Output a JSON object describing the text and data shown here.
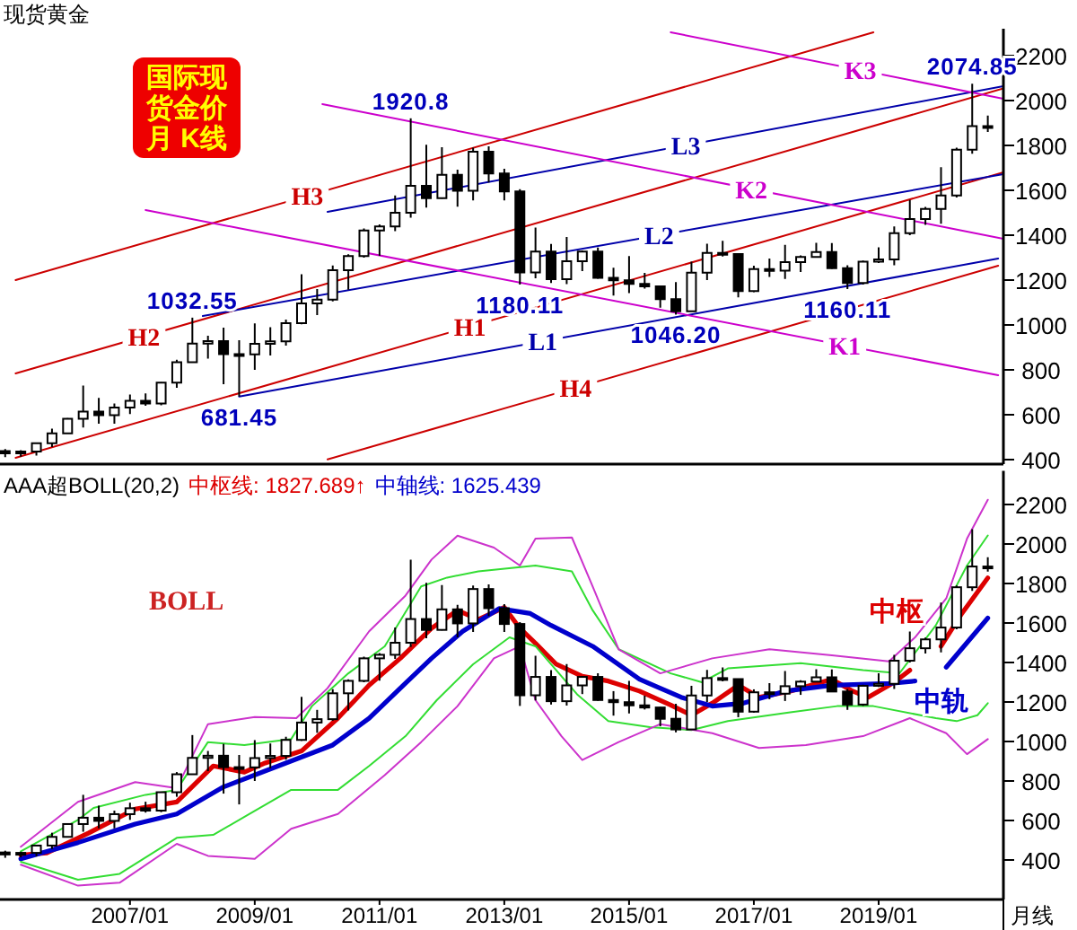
{
  "chart_data": [
    {
      "type": "candlestick",
      "title": "现货黄金",
      "xlim": [
        "2004-12",
        "2021-01"
      ],
      "ylim": [
        380,
        2320
      ],
      "yticks": [
        400,
        600,
        800,
        1000,
        1200,
        1400,
        1600,
        1800,
        2000,
        2200
      ],
      "tick_labels": "y",
      "x": [
        "2005-01",
        "2005-04",
        "2005-07",
        "2005-10",
        "2006-01",
        "2006-04",
        "2006-07",
        "2006-10",
        "2007-01",
        "2007-04",
        "2007-07",
        "2007-10",
        "2008-01",
        "2008-04",
        "2008-07",
        "2008-10",
        "2009-01",
        "2009-04",
        "2009-07",
        "2009-10",
        "2010-01",
        "2010-04",
        "2010-07",
        "2010-10",
        "2011-01",
        "2011-04",
        "2011-07",
        "2011-10",
        "2012-01",
        "2012-04",
        "2012-07",
        "2012-10",
        "2013-01",
        "2013-04",
        "2013-07",
        "2013-10",
        "2014-01",
        "2014-04",
        "2014-07",
        "2014-10",
        "2015-01",
        "2015-04",
        "2015-07",
        "2015-10",
        "2016-01",
        "2016-04",
        "2016-07",
        "2016-10",
        "2017-01",
        "2017-04",
        "2017-07",
        "2017-10",
        "2018-01",
        "2018-04",
        "2018-07",
        "2018-10",
        "2019-01",
        "2019-04",
        "2019-07",
        "2019-10",
        "2020-01",
        "2020-04",
        "2020-07",
        "2020-10"
      ],
      "ohlc": [
        [
          438,
          447,
          411,
          428
        ],
        [
          428,
          442,
          413,
          436
        ],
        [
          436,
          476,
          418,
          473
        ],
        [
          473,
          538,
          456,
          517
        ],
        [
          517,
          585,
          517,
          582
        ],
        [
          582,
          730,
          543,
          614
        ],
        [
          614,
          675,
          560,
          598
        ],
        [
          598,
          650,
          560,
          632
        ],
        [
          632,
          690,
          603,
          662
        ],
        [
          662,
          695,
          640,
          650
        ],
        [
          650,
          745,
          642,
          743
        ],
        [
          743,
          845,
          720,
          834
        ],
        [
          834,
          1032.55,
          832,
          917
        ],
        [
          917,
          952,
          850,
          928
        ],
        [
          928,
          988,
          736,
          870
        ],
        [
          870,
          932,
          681.45,
          869
        ],
        [
          869,
          1007,
          800,
          916
        ],
        [
          916,
          990,
          864,
          927
        ],
        [
          927,
          1024,
          908,
          1008
        ],
        [
          1008,
          1226,
          1003,
          1096
        ],
        [
          1096,
          1160,
          1044,
          1113
        ],
        [
          1113,
          1265,
          1105,
          1244
        ],
        [
          1244,
          1315,
          1157,
          1307
        ],
        [
          1307,
          1430,
          1300,
          1421
        ],
        [
          1421,
          1448,
          1308,
          1439
        ],
        [
          1439,
          1577,
          1418,
          1500
        ],
        [
          1500,
          1920.8,
          1478,
          1620
        ],
        [
          1620,
          1803,
          1523,
          1565
        ],
        [
          1565,
          1792,
          1563,
          1669
        ],
        [
          1669,
          1692,
          1527,
          1598
        ],
        [
          1598,
          1790,
          1555,
          1772
        ],
        [
          1772,
          1796,
          1635,
          1675
        ],
        [
          1675,
          1696,
          1555,
          1595
        ],
        [
          1595,
          1605,
          1180.11,
          1234
        ],
        [
          1234,
          1434,
          1208,
          1327
        ],
        [
          1327,
          1361,
          1187,
          1204
        ],
        [
          1204,
          1392,
          1182,
          1284
        ],
        [
          1284,
          1332,
          1240,
          1327
        ],
        [
          1327,
          1345,
          1206,
          1210
        ],
        [
          1210,
          1255,
          1131,
          1199
        ],
        [
          1199,
          1307,
          1142,
          1183
        ],
        [
          1183,
          1232,
          1162,
          1172
        ],
        [
          1172,
          1175,
          1077,
          1115
        ],
        [
          1115,
          1191,
          1046.2,
          1061
        ],
        [
          1061,
          1282,
          1061,
          1233
        ],
        [
          1233,
          1362,
          1200,
          1321
        ],
        [
          1321,
          1375,
          1305,
          1316
        ],
        [
          1316,
          1316,
          1123,
          1151
        ],
        [
          1151,
          1264,
          1146,
          1249
        ],
        [
          1249,
          1296,
          1214,
          1242
        ],
        [
          1242,
          1357,
          1205,
          1280
        ],
        [
          1280,
          1310,
          1236,
          1303
        ],
        [
          1303,
          1366,
          1302,
          1325
        ],
        [
          1325,
          1365,
          1250,
          1253
        ],
        [
          1253,
          1266,
          1160.11,
          1187
        ],
        [
          1187,
          1287,
          1180,
          1282
        ],
        [
          1282,
          1346,
          1276,
          1292
        ],
        [
          1292,
          1439,
          1266,
          1409
        ],
        [
          1409,
          1557,
          1400,
          1472
        ],
        [
          1472,
          1526,
          1446,
          1517
        ],
        [
          1517,
          1703,
          1451,
          1577
        ],
        [
          1577,
          1790,
          1568,
          1781
        ],
        [
          1781,
          2074.85,
          1763,
          1886
        ],
        [
          1886,
          1933,
          1860,
          1879
        ]
      ],
      "series": [
        {
          "type": "line",
          "name": "H1",
          "color": "#cc0000",
          "x": [
            "2005-03",
            "2021-01"
          ],
          "values": [
            408,
            1680
          ]
        },
        {
          "type": "line",
          "name": "H2",
          "color": "#cc0000",
          "x": [
            "2005-03",
            "2021-01"
          ],
          "values": [
            784,
            2054
          ]
        },
        {
          "type": "line",
          "name": "H3",
          "color": "#cc0000",
          "x": [
            "2005-03",
            "2018-12"
          ],
          "values": [
            1200,
            2304
          ]
        },
        {
          "type": "line",
          "name": "H4",
          "color": "#cc0000",
          "x": [
            "2010-03",
            "2020-12"
          ],
          "values": [
            401,
            1264
          ]
        },
        {
          "type": "line",
          "name": "L1",
          "color": "#0000aa",
          "x": [
            "2008-10",
            "2020-12"
          ],
          "values": [
            681,
            1296
          ]
        },
        {
          "type": "line",
          "name": "L2",
          "color": "#0000aa",
          "x": [
            "2008-03",
            "2021-01"
          ],
          "values": [
            1040,
            1672
          ]
        },
        {
          "type": "line",
          "name": "L3",
          "color": "#0000aa",
          "x": [
            "2010-03",
            "2021-01"
          ],
          "values": [
            1504,
            2064
          ]
        },
        {
          "type": "line",
          "name": "K1",
          "color": "#cc00cc",
          "x": [
            "2007-04",
            "2020-12"
          ],
          "values": [
            1512,
            776
          ]
        },
        {
          "type": "line",
          "name": "K2",
          "color": "#cc00cc",
          "x": [
            "2010-02",
            "2021-01"
          ],
          "values": [
            1984,
            1384
          ]
        },
        {
          "type": "line",
          "name": "K3",
          "color": "#cc00cc",
          "x": [
            "2015-09",
            "2021-01"
          ],
          "values": [
            2304,
            2008
          ]
        }
      ],
      "annotations": [
        "国际现",
        "货金价",
        "月 K线",
        {
          "text": "1920.8",
          "x": "2011-07",
          "y": 1920.8
        },
        {
          "text": "1032.55",
          "x": "2008-01",
          "y": 1032.55
        },
        {
          "text": "681.45",
          "x": "2008-10",
          "y": 681.45
        },
        {
          "text": "1180.11",
          "x": "2013-04",
          "y": 1180.11
        },
        {
          "text": "1046.20",
          "x": "2015-10",
          "y": 1046.2
        },
        {
          "text": "1160.11",
          "x": "2018-07",
          "y": 1160.11
        },
        {
          "text": "2074.85",
          "x": "2020-07",
          "y": 2074.85
        }
      ]
    },
    {
      "type": "candlestick",
      "title": "AAA超BOLL(20,2)",
      "xlabel": "月线",
      "xlim": [
        "2004-12",
        "2021-01"
      ],
      "ylim": [
        200,
        2370
      ],
      "yticks": [
        400,
        600,
        800,
        1000,
        1200,
        1400,
        1600,
        1800,
        2000,
        2200
      ],
      "xticks": [
        {
          "value": "2007-01",
          "label": "2007/01"
        },
        {
          "value": "2009-01",
          "label": "2009/01"
        },
        {
          "value": "2011-01",
          "label": "2011/01"
        },
        {
          "value": "2013-01",
          "label": "2013/01"
        },
        {
          "value": "2015-01",
          "label": "2015/01"
        },
        {
          "value": "2017-01",
          "label": "2017/01"
        },
        {
          "value": "2019-01",
          "label": "2019/01"
        }
      ],
      "x": [
        "2005-01",
        "2005-04",
        "2005-07",
        "2005-10",
        "2006-01",
        "2006-04",
        "2006-07",
        "2006-10",
        "2007-01",
        "2007-04",
        "2007-07",
        "2007-10",
        "2008-01",
        "2008-04",
        "2008-07",
        "2008-10",
        "2009-01",
        "2009-04",
        "2009-07",
        "2009-10",
        "2010-01",
        "2010-04",
        "2010-07",
        "2010-10",
        "2011-01",
        "2011-04",
        "2011-07",
        "2011-10",
        "2012-01",
        "2012-04",
        "2012-07",
        "2012-10",
        "2013-01",
        "2013-04",
        "2013-07",
        "2013-10",
        "2014-01",
        "2014-04",
        "2014-07",
        "2014-10",
        "2015-01",
        "2015-04",
        "2015-07",
        "2015-10",
        "2016-01",
        "2016-04",
        "2016-07",
        "2016-10",
        "2017-01",
        "2017-04",
        "2017-07",
        "2017-10",
        "2018-01",
        "2018-04",
        "2018-07",
        "2018-10",
        "2019-01",
        "2019-04",
        "2019-07",
        "2019-10",
        "2020-01",
        "2020-04",
        "2020-07",
        "2020-10"
      ],
      "ohlc": [
        [
          438,
          447,
          411,
          428
        ],
        [
          428,
          442,
          413,
          436
        ],
        [
          436,
          476,
          418,
          473
        ],
        [
          473,
          538,
          456,
          517
        ],
        [
          517,
          585,
          517,
          582
        ],
        [
          582,
          730,
          543,
          614
        ],
        [
          614,
          675,
          560,
          598
        ],
        [
          598,
          650,
          560,
          632
        ],
        [
          632,
          690,
          603,
          662
        ],
        [
          662,
          695,
          640,
          650
        ],
        [
          650,
          745,
          642,
          743
        ],
        [
          743,
          845,
          720,
          834
        ],
        [
          834,
          1032.55,
          832,
          917
        ],
        [
          917,
          952,
          850,
          928
        ],
        [
          928,
          988,
          736,
          870
        ],
        [
          870,
          932,
          681.45,
          869
        ],
        [
          869,
          1007,
          800,
          916
        ],
        [
          916,
          990,
          864,
          927
        ],
        [
          927,
          1024,
          908,
          1008
        ],
        [
          1008,
          1226,
          1003,
          1096
        ],
        [
          1096,
          1160,
          1044,
          1113
        ],
        [
          1113,
          1265,
          1105,
          1244
        ],
        [
          1244,
          1315,
          1157,
          1307
        ],
        [
          1307,
          1430,
          1300,
          1421
        ],
        [
          1421,
          1448,
          1308,
          1439
        ],
        [
          1439,
          1577,
          1418,
          1500
        ],
        [
          1500,
          1920.8,
          1478,
          1620
        ],
        [
          1620,
          1803,
          1523,
          1565
        ],
        [
          1565,
          1792,
          1563,
          1669
        ],
        [
          1669,
          1692,
          1527,
          1598
        ],
        [
          1598,
          1790,
          1555,
          1772
        ],
        [
          1772,
          1796,
          1635,
          1675
        ],
        [
          1675,
          1696,
          1555,
          1595
        ],
        [
          1595,
          1605,
          1180.11,
          1234
        ],
        [
          1234,
          1434,
          1208,
          1327
        ],
        [
          1327,
          1361,
          1187,
          1204
        ],
        [
          1204,
          1392,
          1182,
          1284
        ],
        [
          1284,
          1332,
          1240,
          1327
        ],
        [
          1327,
          1345,
          1206,
          1210
        ],
        [
          1210,
          1255,
          1131,
          1199
        ],
        [
          1199,
          1307,
          1142,
          1183
        ],
        [
          1183,
          1232,
          1162,
          1172
        ],
        [
          1172,
          1175,
          1077,
          1115
        ],
        [
          1115,
          1191,
          1046.2,
          1061
        ],
        [
          1061,
          1282,
          1061,
          1233
        ],
        [
          1233,
          1362,
          1200,
          1321
        ],
        [
          1321,
          1375,
          1305,
          1316
        ],
        [
          1316,
          1316,
          1123,
          1151
        ],
        [
          1151,
          1264,
          1146,
          1249
        ],
        [
          1249,
          1296,
          1214,
          1242
        ],
        [
          1242,
          1357,
          1205,
          1280
        ],
        [
          1280,
          1310,
          1236,
          1303
        ],
        [
          1303,
          1366,
          1302,
          1325
        ],
        [
          1325,
          1365,
          1250,
          1253
        ],
        [
          1253,
          1266,
          1160.11,
          1187
        ],
        [
          1187,
          1287,
          1180,
          1282
        ],
        [
          1282,
          1346,
          1276,
          1292
        ],
        [
          1292,
          1439,
          1266,
          1409
        ],
        [
          1409,
          1557,
          1400,
          1472
        ],
        [
          1472,
          1526,
          1446,
          1517
        ],
        [
          1517,
          1703,
          1451,
          1577
        ],
        [
          1577,
          1790,
          1568,
          1781
        ],
        [
          1781,
          2074.85,
          1763,
          1886
        ],
        [
          1886,
          1933,
          1860,
          1879
        ]
      ],
      "series": [
        {
          "type": "line",
          "name": "中枢",
          "color": "#dd0000",
          "x": [
            "2005-04",
            "2005-09",
            "2006-05",
            "2007-02",
            "2007-10",
            "2008-05",
            "2008-11",
            "2009-03",
            "2009-10",
            "2010-05",
            "2010-11",
            "2011-05",
            "2011-11",
            "2012-04",
            "2012-08",
            "2013-01",
            "2013-04",
            "2013-07",
            "2013-11",
            "2014-04",
            "2014-09",
            "2015-03",
            "2015-09",
            "2016-01",
            "2016-05",
            "2016-10",
            "2017-02",
            "2017-08",
            "2018-04",
            "2018-08",
            "2018-11",
            "2019-04",
            "2019-07",
            "2019-10",
            "2020-01",
            "2020-05",
            "2020-10"
          ],
          "values": [
            425,
            436,
            536,
            658,
            694,
            876,
            845,
            891,
            952,
            1118,
            1285,
            1421,
            1573,
            1664,
            1618,
            1679,
            1573,
            1497,
            1391,
            1330,
            1306,
            1255,
            1185,
            1133,
            1194,
            1285,
            1224,
            1255,
            1315,
            1255,
            1224,
            1300,
            1361,
            null,
            1482,
            1648,
            1828
          ]
        },
        {
          "type": "line",
          "name": "中轨",
          "color": "#0000cc",
          "x": [
            "2005-04",
            "2006-03",
            "2007-02",
            "2007-10",
            "2008-07",
            "2009-07",
            "2010-04",
            "2010-11",
            "2011-05",
            "2011-11",
            "2012-05",
            "2012-12",
            "2013-06",
            "2013-10",
            "2014-06",
            "2015-03",
            "2015-11",
            "2016-05",
            "2016-11",
            "2017-07",
            "2018-04",
            "2019-03",
            "2019-08",
            "2019-11",
            "2020-02",
            "2020-10"
          ],
          "values": [
            406,
            488,
            582,
            633,
            770,
            891,
            982,
            1118,
            1270,
            1421,
            1558,
            1673,
            1648,
            1588,
            1482,
            1315,
            1224,
            1179,
            1194,
            1255,
            1285,
            1294,
            1306,
            null,
            1376,
            1625
          ]
        },
        {
          "type": "line",
          "color": "#33dd33",
          "x": [
            "2005-04",
            "2006-03",
            "2006-06",
            "2007-04",
            "2007-10",
            "2008-04",
            "2008-11",
            "2009-08",
            "2009-12",
            "2010-07",
            "2011-02",
            "2011-09",
            "2012-02",
            "2012-08",
            "2013-07",
            "2014-02",
            "2014-06",
            "2014-11",
            "2015-09",
            "2016-03",
            "2016-08",
            "2017-10",
            "2018-10",
            "2019-05",
            "2019-12",
            "2020-06",
            "2020-10"
          ],
          "values": [
            444,
            603,
            664,
            730,
            755,
            997,
            982,
            1012,
            1179,
            1345,
            1482,
            1785,
            1830,
            1861,
            1891,
            1861,
            1664,
            1467,
            1345,
            1300,
            1370,
            1397,
            1361,
            1345,
            1588,
            1891,
            2043
          ]
        },
        {
          "type": "line",
          "color": "#33dd33",
          "x": [
            "2005-04",
            "2006-03",
            "2006-11",
            "2007-10",
            "2008-05",
            "2008-12",
            "2009-08",
            "2010-05",
            "2010-11",
            "2011-06",
            "2011-12",
            "2012-07",
            "2013-02",
            "2013-07",
            "2014-03",
            "2014-09",
            "2015-05",
            "2016-01",
            "2016-08",
            "2017-08",
            "2018-05",
            "2018-12",
            "2019-12",
            "2020-04",
            "2020-08",
            "2020-10"
          ],
          "values": [
            391,
            300,
            330,
            512,
            527,
            633,
            755,
            755,
            876,
            1027,
            1209,
            1391,
            1527,
            1482,
            1239,
            1103,
            1073,
            1058,
            1103,
            1148,
            1179,
            1179,
            1118,
            1103,
            1133,
            1194
          ]
        },
        {
          "type": "line",
          "color": "#cc33cc",
          "x": [
            "2005-04",
            "2006-03",
            "2007-02",
            "2007-10",
            "2008-04",
            "2009-01",
            "2009-09",
            "2010-03",
            "2010-11",
            "2011-06",
            "2011-11",
            "2012-04",
            "2012-11",
            "2013-04",
            "2013-07",
            "2014-02",
            "2014-06",
            "2014-11",
            "2015-07",
            "2016-05",
            "2017-04",
            "2018-04",
            "2019-03",
            "2019-08",
            "2020-02",
            "2020-06",
            "2020-10"
          ],
          "values": [
            467,
            694,
            794,
            764,
            1088,
            1124,
            1118,
            1270,
            1558,
            1739,
            1921,
            2042,
            1982,
            1891,
            2027,
            2033,
            1785,
            1467,
            1345,
            1421,
            1467,
            1436,
            1406,
            1527,
            1724,
            2027,
            2224
          ]
        },
        {
          "type": "line",
          "color": "#cc33cc",
          "x": [
            "2005-04",
            "2006-03",
            "2006-11",
            "2007-10",
            "2008-04",
            "2009-01",
            "2009-08",
            "2010-05",
            "2011-02",
            "2011-09",
            "2012-04",
            "2012-11",
            "2013-04",
            "2013-07",
            "2013-12",
            "2014-04",
            "2014-11",
            "2015-07",
            "2016-05",
            "2017-02",
            "2017-11",
            "2018-10",
            "2019-07",
            "2020-02",
            "2020-06",
            "2020-10"
          ],
          "values": [
            376,
            270,
            285,
            482,
            421,
            406,
            558,
            633,
            830,
            997,
            1179,
            1421,
            1482,
            1209,
            1027,
            906,
            997,
            1088,
            1042,
            967,
            982,
            1027,
            1118,
            1042,
            936,
            1012
          ]
        }
      ],
      "annotations": [
        "中枢线: 1827.689↑",
        "中轴线: 1625.439",
        "BOLL"
      ]
    }
  ]
}
